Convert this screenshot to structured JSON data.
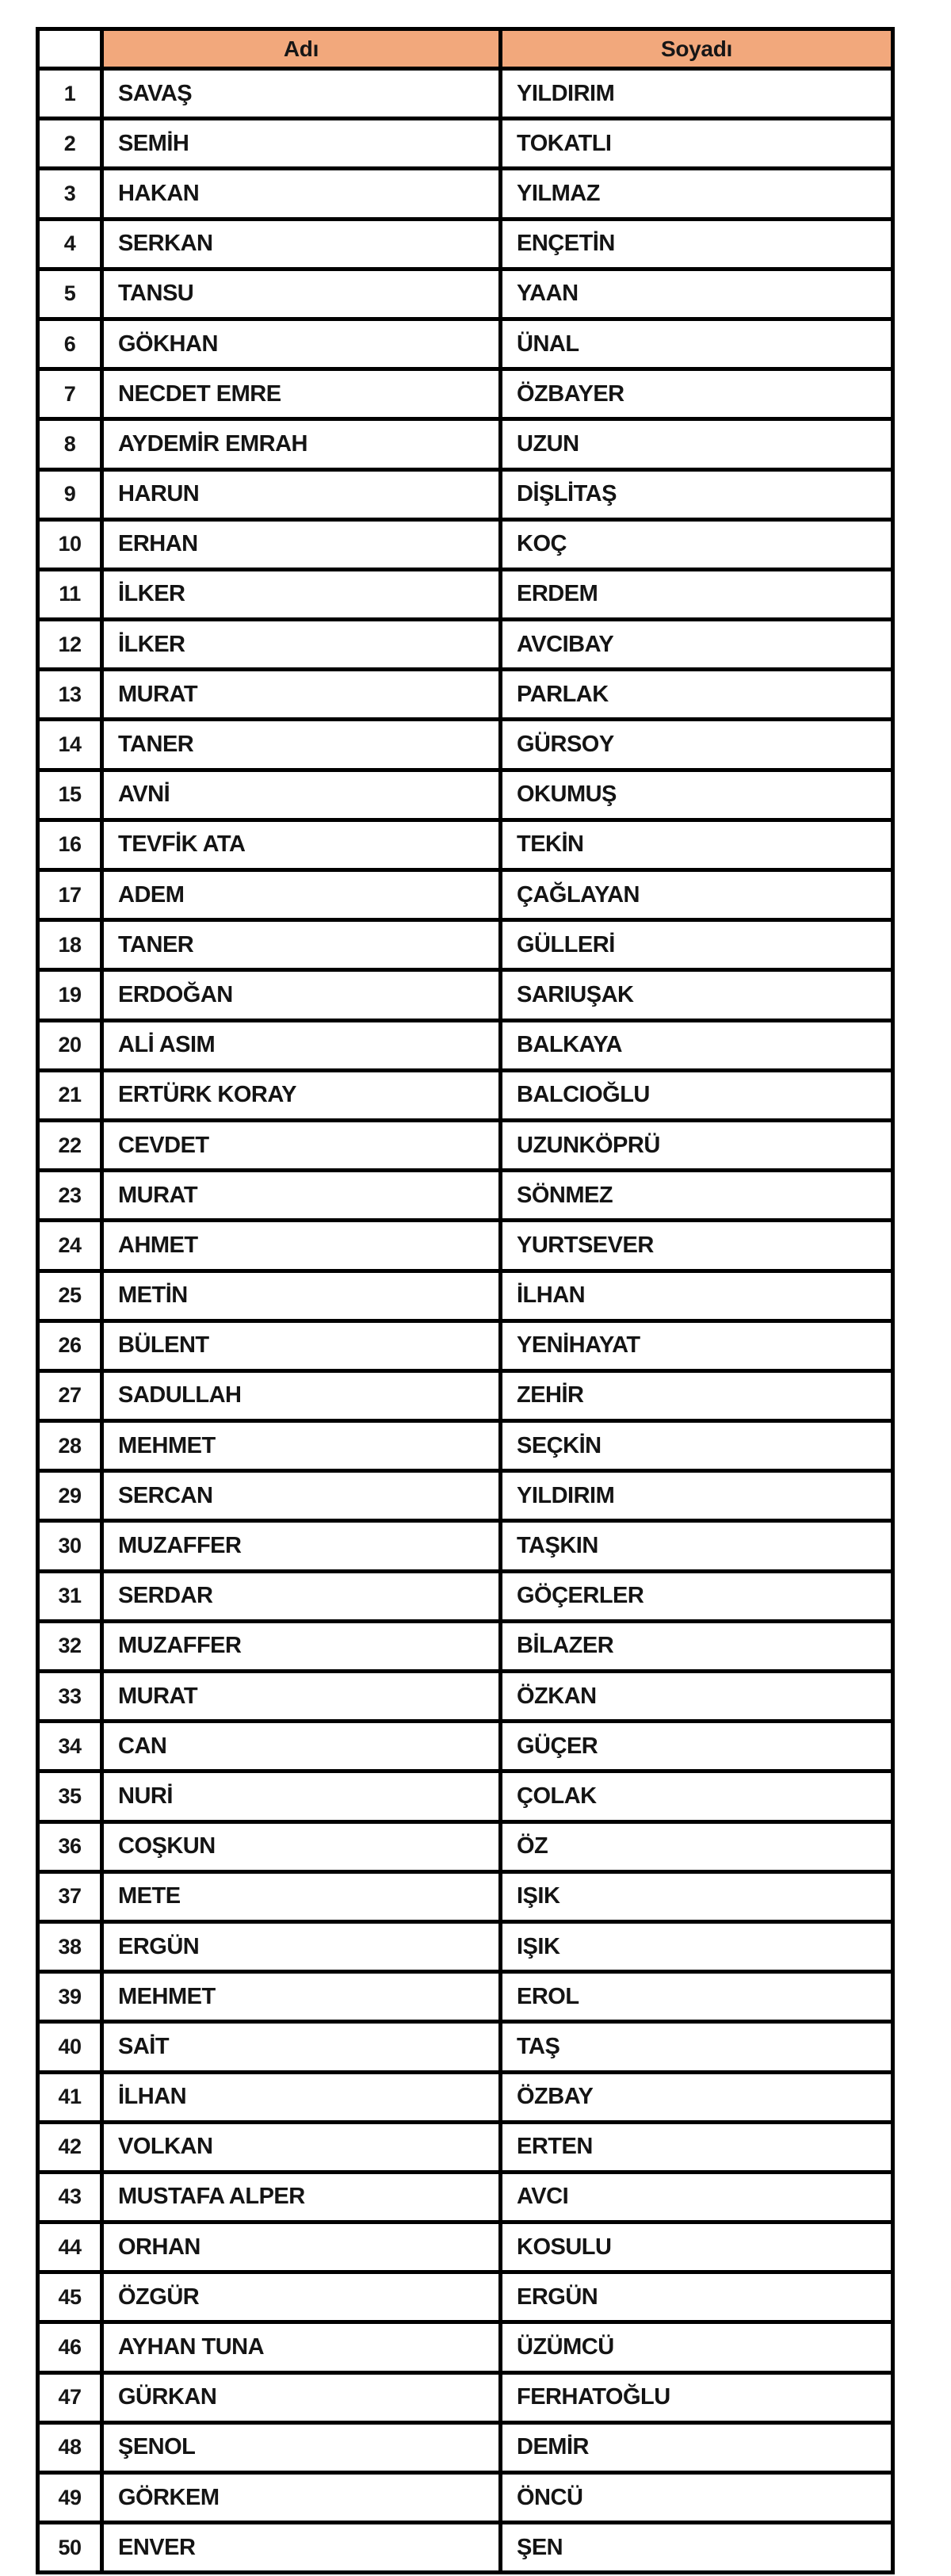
{
  "colors": {
    "header_fill": "#F2A87C",
    "border": "#000000",
    "text": "#141414",
    "page_background": "#ffffff"
  },
  "table": {
    "headers": {
      "index": "",
      "name": "Adı",
      "surname": "Soyadı"
    },
    "rows": [
      {
        "n": "1",
        "name": "SAVAŞ",
        "surname": "YILDIRIM"
      },
      {
        "n": "2",
        "name": "SEMİH",
        "surname": "TOKATLI"
      },
      {
        "n": "3",
        "name": "HAKAN",
        "surname": "YILMAZ"
      },
      {
        "n": "4",
        "name": "SERKAN",
        "surname": "ENÇETİN"
      },
      {
        "n": "5",
        "name": "TANSU",
        "surname": "YAAN"
      },
      {
        "n": "6",
        "name": "GÖKHAN",
        "surname": "ÜNAL"
      },
      {
        "n": "7",
        "name": "NECDET EMRE",
        "surname": "ÖZBAYER"
      },
      {
        "n": "8",
        "name": "AYDEMİR EMRAH",
        "surname": "UZUN"
      },
      {
        "n": "9",
        "name": "HARUN",
        "surname": "DİŞLİTAŞ"
      },
      {
        "n": "10",
        "name": "ERHAN",
        "surname": "KOÇ"
      },
      {
        "n": "11",
        "name": "İLKER",
        "surname": "ERDEM"
      },
      {
        "n": "12",
        "name": "İLKER",
        "surname": "AVCIBAY"
      },
      {
        "n": "13",
        "name": "MURAT",
        "surname": "PARLAK"
      },
      {
        "n": "14",
        "name": "TANER",
        "surname": "GÜRSOY"
      },
      {
        "n": "15",
        "name": "AVNİ",
        "surname": "OKUMUŞ"
      },
      {
        "n": "16",
        "name": "TEVFİK ATA",
        "surname": "TEKİN"
      },
      {
        "n": "17",
        "name": "ADEM",
        "surname": "ÇAĞLAYAN"
      },
      {
        "n": "18",
        "name": "TANER",
        "surname": "GÜLLERİ"
      },
      {
        "n": "19",
        "name": "ERDOĞAN",
        "surname": "SARIUŞAK"
      },
      {
        "n": "20",
        "name": "ALİ ASIM",
        "surname": "BALKAYA"
      },
      {
        "n": "21",
        "name": "ERTÜRK KORAY",
        "surname": "BALCIOĞLU"
      },
      {
        "n": "22",
        "name": "CEVDET",
        "surname": "UZUNKÖPRÜ"
      },
      {
        "n": "23",
        "name": "MURAT",
        "surname": "SÖNMEZ"
      },
      {
        "n": "24",
        "name": "AHMET",
        "surname": "YURTSEVER"
      },
      {
        "n": "25",
        "name": "METİN",
        "surname": "İLHAN"
      },
      {
        "n": "26",
        "name": "BÜLENT",
        "surname": "YENİHAYAT"
      },
      {
        "n": "27",
        "name": "SADULLAH",
        "surname": "ZEHİR"
      },
      {
        "n": "28",
        "name": "MEHMET",
        "surname": "SEÇKİN"
      },
      {
        "n": "29",
        "name": "SERCAN",
        "surname": "YILDIRIM"
      },
      {
        "n": "30",
        "name": "MUZAFFER",
        "surname": "TAŞKIN"
      },
      {
        "n": "31",
        "name": "SERDAR",
        "surname": "GÖÇERLER"
      },
      {
        "n": "32",
        "name": "MUZAFFER",
        "surname": "BİLAZER"
      },
      {
        "n": "33",
        "name": "MURAT",
        "surname": "ÖZKAN"
      },
      {
        "n": "34",
        "name": "CAN",
        "surname": "GÜÇER"
      },
      {
        "n": "35",
        "name": "NURİ",
        "surname": "ÇOLAK"
      },
      {
        "n": "36",
        "name": "COŞKUN",
        "surname": "ÖZ"
      },
      {
        "n": "37",
        "name": "METE",
        "surname": "IŞIK"
      },
      {
        "n": "38",
        "name": "ERGÜN",
        "surname": "IŞIK"
      },
      {
        "n": "39",
        "name": "MEHMET",
        "surname": "EROL"
      },
      {
        "n": "40",
        "name": "SAİT",
        "surname": "TAŞ"
      },
      {
        "n": "41",
        "name": "İLHAN",
        "surname": "ÖZBAY"
      },
      {
        "n": "42",
        "name": "VOLKAN",
        "surname": "ERTEN"
      },
      {
        "n": "43",
        "name": "MUSTAFA ALPER",
        "surname": "AVCI"
      },
      {
        "n": "44",
        "name": "ORHAN",
        "surname": "KOSULU"
      },
      {
        "n": "45",
        "name": "ÖZGÜR",
        "surname": "ERGÜN"
      },
      {
        "n": "46",
        "name": "AYHAN TUNA",
        "surname": "ÜZÜMCÜ"
      },
      {
        "n": "47",
        "name": "GÜRKAN",
        "surname": "FERHATOĞLU"
      },
      {
        "n": "48",
        "name": "ŞENOL",
        "surname": "DEMİR"
      },
      {
        "n": "49",
        "name": "GÖRKEM",
        "surname": "ÖNCÜ"
      },
      {
        "n": "50",
        "name": "ENVER",
        "surname": "ŞEN"
      }
    ]
  }
}
